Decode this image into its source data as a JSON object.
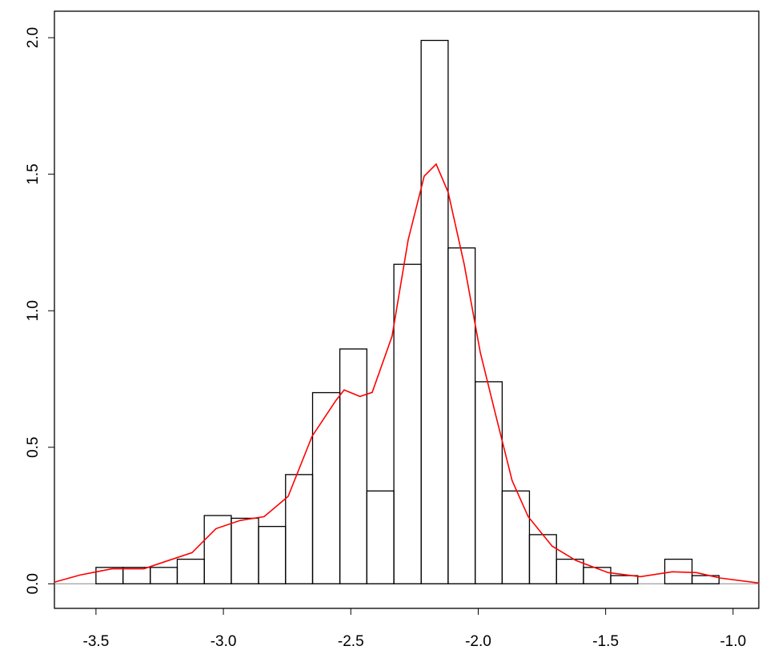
{
  "chart_data": {
    "type": "histogram",
    "bins": [
      -3.5,
      -3.394,
      -3.287,
      -3.181,
      -3.075,
      -2.969,
      -2.862,
      -2.756,
      -2.65,
      -2.543,
      -2.437,
      -2.331,
      -2.224,
      -2.118,
      -2.012,
      -1.906,
      -1.799,
      -1.693,
      -1.587,
      -1.48,
      -1.374,
      -1.268,
      -1.161,
      -1.055
    ],
    "values": [
      0.06,
      0.06,
      0.06,
      0.09,
      0.25,
      0.24,
      0.21,
      0.4,
      0.7,
      0.86,
      0.34,
      1.17,
      1.99,
      1.23,
      0.74,
      0.34,
      0.18,
      0.09,
      0.06,
      0.03,
      0,
      0.09,
      0.03
    ],
    "color": "#000000",
    "density": {
      "color": "#ff0000",
      "x": [
        -3.663,
        -3.563,
        -3.437,
        -3.312,
        -3.217,
        -3.123,
        -3.029,
        -2.934,
        -2.84,
        -2.746,
        -2.652,
        -2.558,
        -2.526,
        -2.464,
        -2.416,
        -2.338,
        -2.275,
        -2.212,
        -2.165,
        -2.118,
        -2.055,
        -1.992,
        -1.93,
        -1.867,
        -1.804,
        -1.71,
        -1.616,
        -1.49,
        -1.364,
        -1.239,
        -1.144,
        -1.05,
        -0.899
      ],
      "y": [
        0.006,
        0.032,
        0.055,
        0.055,
        0.085,
        0.114,
        0.202,
        0.232,
        0.246,
        0.32,
        0.54,
        0.672,
        0.71,
        0.686,
        0.701,
        0.907,
        1.259,
        1.493,
        1.537,
        1.434,
        1.17,
        0.848,
        0.613,
        0.378,
        0.246,
        0.138,
        0.085,
        0.041,
        0.026,
        0.044,
        0.041,
        0.021,
        0.003
      ]
    },
    "xlim": [
      -3.663,
      -0.899
    ],
    "ylim": [
      -0.09,
      2.097
    ],
    "xticks": [
      -3.5,
      {
        "value": -3,
        "label": "-3.0"
      },
      -2.5,
      {
        "value": -2,
        "label": "-2.0"
      },
      -1.5,
      {
        "value": -1,
        "label": "-1.0"
      }
    ],
    "yticks": [
      {
        "value": 0,
        "label": "0.0"
      },
      0.5,
      {
        "value": 1,
        "label": "1.0"
      },
      1.5,
      {
        "value": 2,
        "label": "2.0"
      }
    ]
  }
}
